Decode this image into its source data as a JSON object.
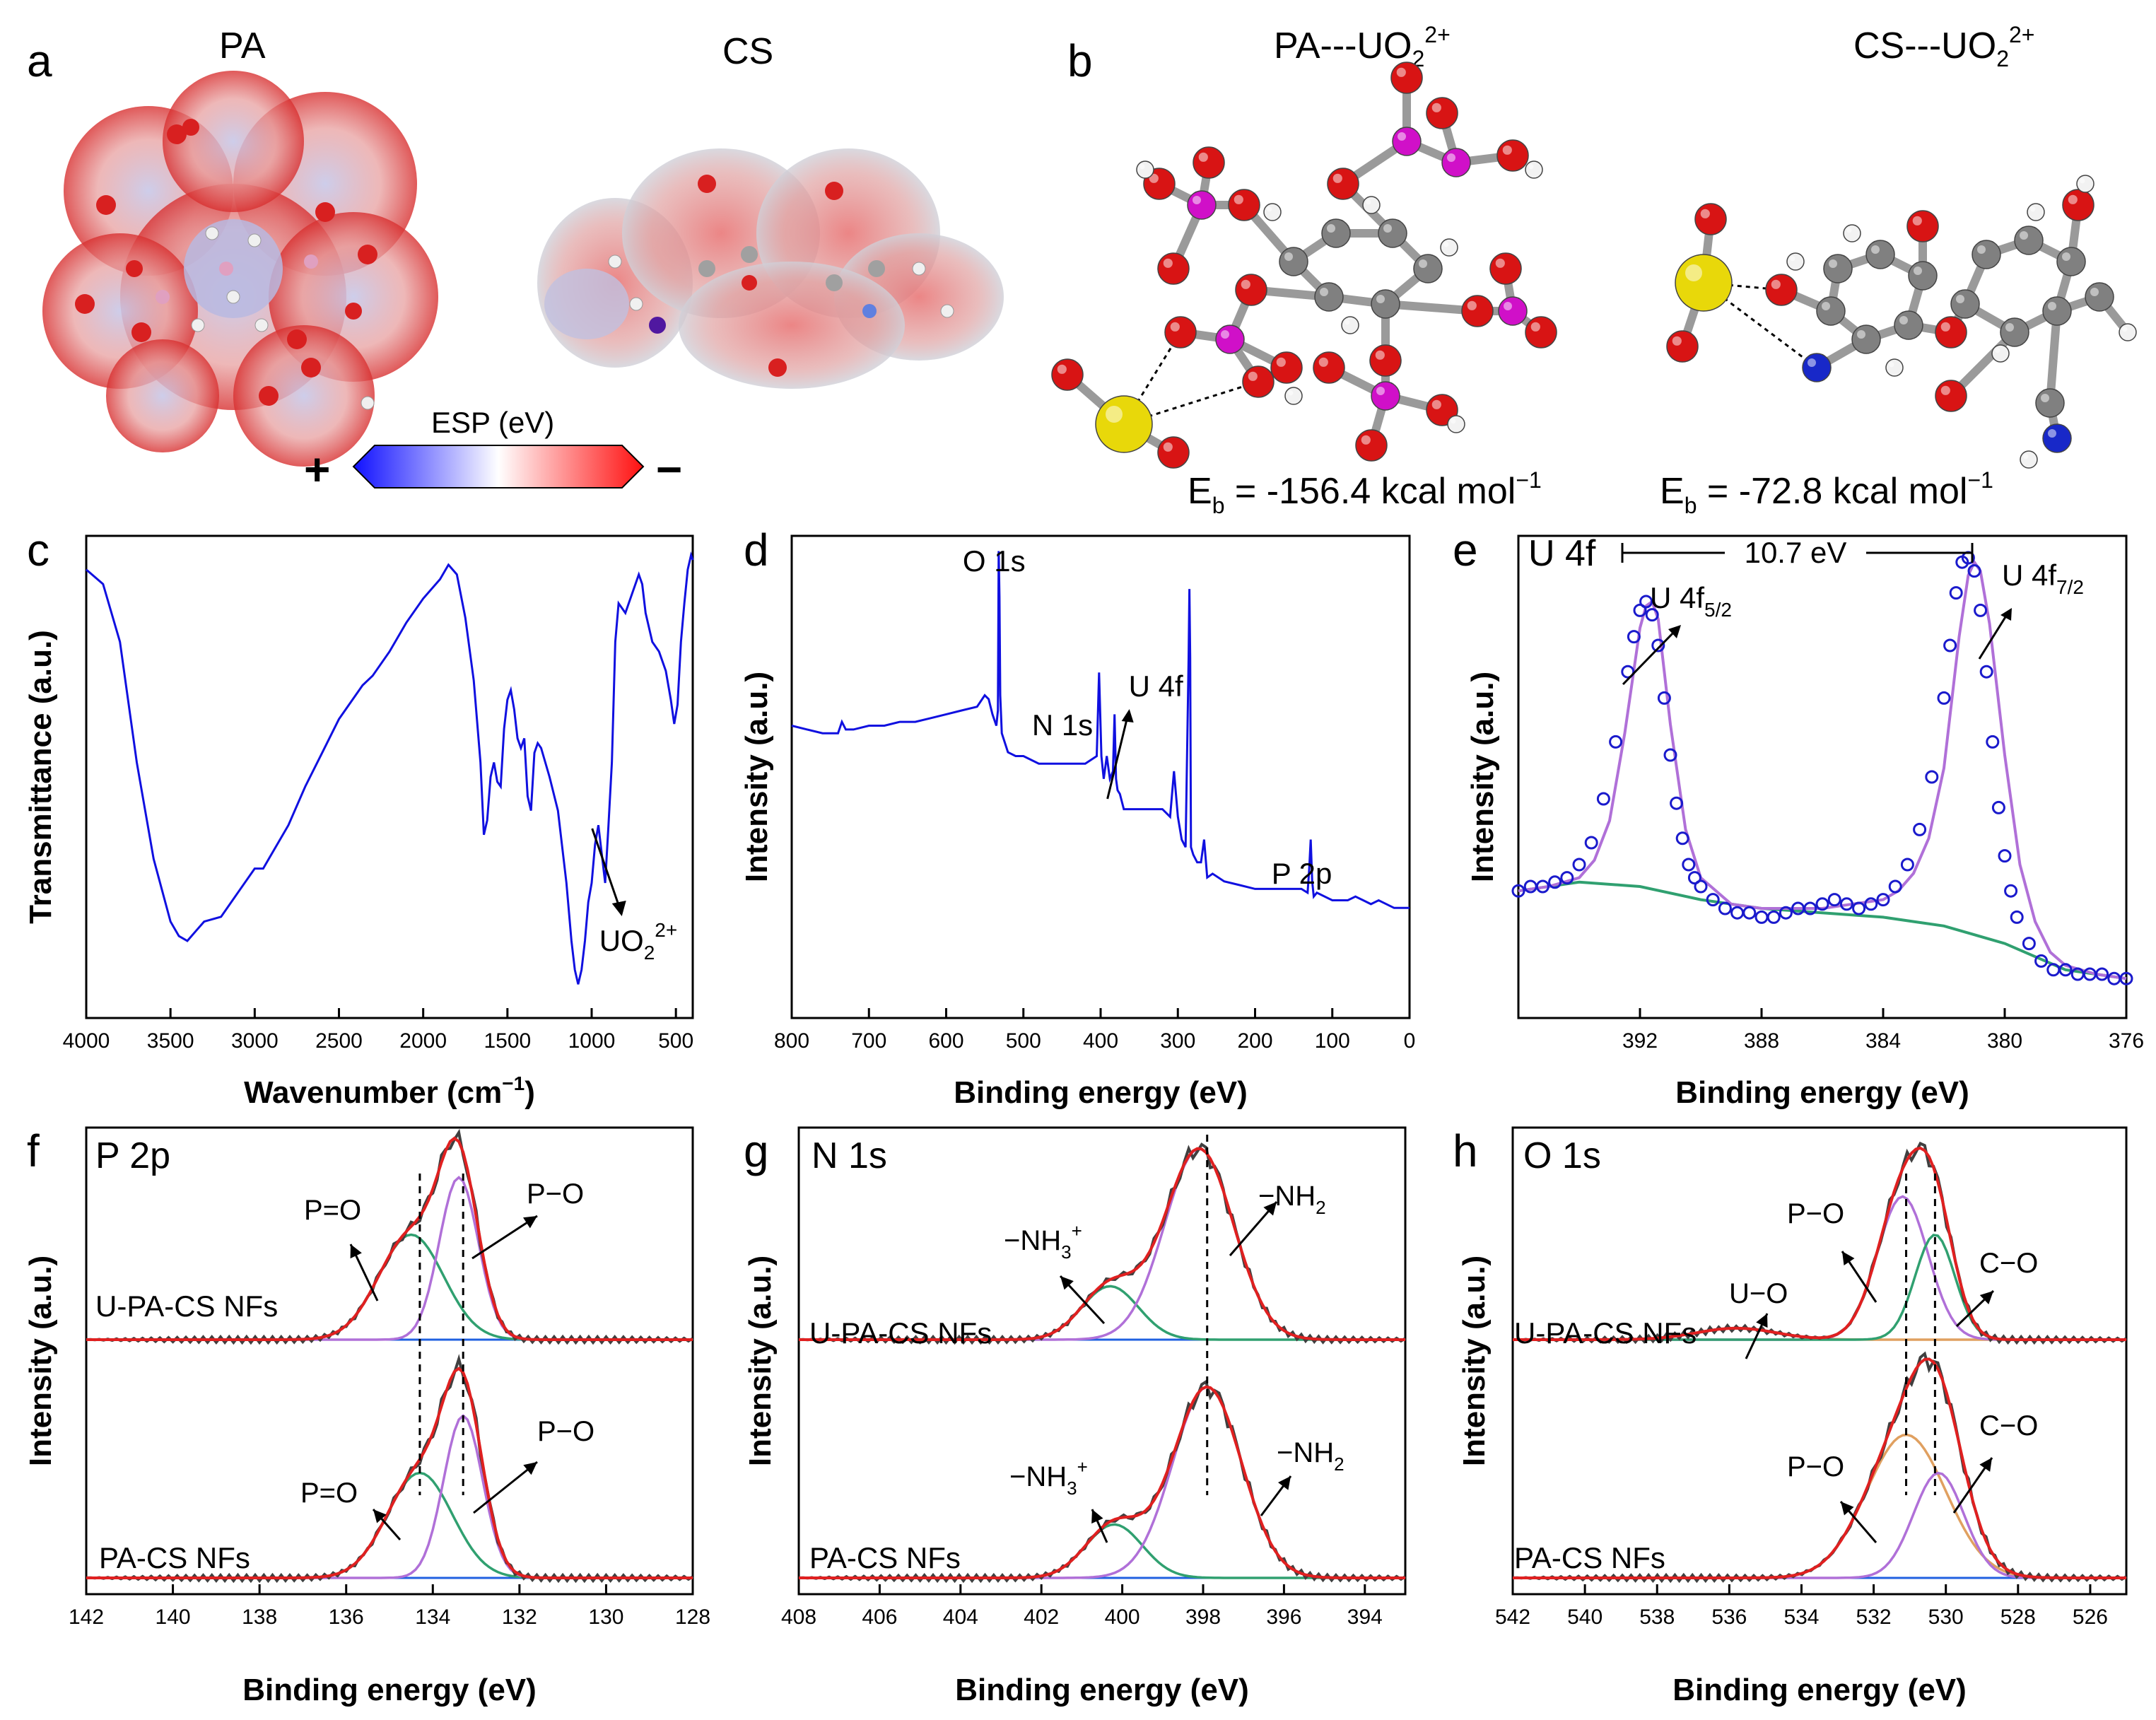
{
  "panel_letters": {
    "a": "a",
    "b": "b",
    "c": "c",
    "d": "d",
    "e": "e",
    "f": "f",
    "g": "g",
    "h": "h"
  },
  "panel_a": {
    "mol1": "PA",
    "mol2": "CS",
    "colorbar_title": "ESP (eV)",
    "plus": "+",
    "minus": "−",
    "colorbar_colors": [
      "#1010ff",
      "#ffffff",
      "#ff1010"
    ]
  },
  "panel_b": {
    "complex1_main": "PA---UO",
    "complex1_sub": "2",
    "complex1_sup": "2+",
    "complex2_main": "CS---UO",
    "complex2_sub": "2",
    "complex2_sup": "2+",
    "eb1_main": "E",
    "eb1_sub": "b",
    "eb1_value": " = -156.4 kcal mol",
    "eb1_exp": "−1",
    "eb2_main": "E",
    "eb2_sub": "b",
    "eb2_value": " = -72.8 kcal mol",
    "eb2_exp": "−1",
    "atom_colors": {
      "uranium": "#e8d80a",
      "oxygen": "#d81414",
      "phosphorus": "#d010c8",
      "carbon": "#808080",
      "nitrogen": "#1828c8",
      "hydrogen": "#f2f2f2"
    }
  },
  "chart_data": [
    {
      "panel": "c",
      "type": "line",
      "xlabel": "Wavenumber (cm",
      "xlabel_exp": "−1",
      "xlabel_close": ")",
      "ylabel": "Transmittance (a.u.)",
      "xlim": [
        4000,
        400
      ],
      "xticks": [
        "4000",
        "3500",
        "3000",
        "2500",
        "2000",
        "1500",
        "1000",
        "500"
      ],
      "color": "#1010e0",
      "series": [
        {
          "x": [
            4000,
            3900,
            3800,
            3700,
            3600,
            3500,
            3450,
            3400,
            3350,
            3300,
            3200,
            3100,
            3000,
            2950,
            2900,
            2800,
            2700,
            2600,
            2500,
            2400,
            2360,
            2300,
            2200,
            2100,
            2000,
            1900,
            1850,
            1800,
            1750,
            1700,
            1660,
            1640,
            1620,
            1600,
            1580,
            1560,
            1540,
            1520,
            1500,
            1480,
            1460,
            1440,
            1420,
            1400,
            1380,
            1360,
            1340,
            1320,
            1300,
            1250,
            1200,
            1150,
            1120,
            1100,
            1080,
            1060,
            1040,
            1020,
            1000,
            980,
            960,
            940,
            920,
            900,
            880,
            860,
            840,
            820,
            800,
            760,
            720,
            700,
            680,
            640,
            600,
            560,
            530,
            510,
            490,
            470,
            450,
            430,
            410,
            400
          ],
          "y": [
            0.95,
            0.92,
            0.8,
            0.55,
            0.35,
            0.22,
            0.19,
            0.18,
            0.2,
            0.22,
            0.23,
            0.28,
            0.33,
            0.33,
            0.36,
            0.42,
            0.5,
            0.57,
            0.64,
            0.69,
            0.71,
            0.73,
            0.78,
            0.84,
            0.89,
            0.93,
            0.96,
            0.94,
            0.85,
            0.72,
            0.55,
            0.4,
            0.43,
            0.52,
            0.55,
            0.51,
            0.5,
            0.62,
            0.68,
            0.7,
            0.66,
            0.6,
            0.58,
            0.6,
            0.48,
            0.45,
            0.57,
            0.59,
            0.58,
            0.52,
            0.45,
            0.3,
            0.18,
            0.12,
            0.09,
            0.12,
            0.18,
            0.26,
            0.3,
            0.38,
            0.42,
            0.36,
            0.3,
            0.42,
            0.55,
            0.8,
            0.88,
            0.87,
            0.86,
            0.9,
            0.94,
            0.92,
            0.86,
            0.8,
            0.78,
            0.74,
            0.68,
            0.63,
            0.67,
            0.8,
            0.88,
            0.95,
            0.98,
            0.97
          ]
        }
      ],
      "annotation": {
        "text_main": "UO",
        "text_sub": "2",
        "text_sup": "2+",
        "x": 955
      }
    },
    {
      "panel": "d",
      "type": "line",
      "xlabel": "Binding energy (eV)",
      "ylabel": "Intensity (a.u.)",
      "xlim": [
        800,
        0
      ],
      "xticks": [
        "800",
        "700",
        "600",
        "500",
        "400",
        "300",
        "200",
        "100",
        "0"
      ],
      "color": "#1010e0",
      "series": [
        {
          "x": [
            800,
            780,
            760,
            740,
            735,
            730,
            720,
            700,
            680,
            660,
            640,
            620,
            600,
            580,
            560,
            550,
            545,
            540,
            535,
            533,
            532,
            531,
            530,
            528,
            520,
            510,
            500,
            480,
            460,
            440,
            420,
            405,
            402,
            399,
            396,
            392,
            388,
            384,
            382,
            380,
            378,
            375,
            370,
            360,
            340,
            320,
            310,
            305,
            300,
            295,
            290,
            286,
            285,
            284,
            283,
            280,
            275,
            270,
            266,
            262,
            255,
            240,
            220,
            200,
            180,
            160,
            140,
            132,
            130,
            128,
            126,
            124,
            120,
            100,
            80,
            70,
            60,
            50,
            40,
            20,
            0
          ],
          "y": [
            0.52,
            0.51,
            0.5,
            0.5,
            0.53,
            0.51,
            0.51,
            0.52,
            0.52,
            0.53,
            0.53,
            0.54,
            0.55,
            0.56,
            0.57,
            0.6,
            0.59,
            0.55,
            0.52,
            0.56,
            0.98,
            0.86,
            0.6,
            0.5,
            0.45,
            0.44,
            0.44,
            0.42,
            0.42,
            0.42,
            0.42,
            0.44,
            0.66,
            0.44,
            0.38,
            0.44,
            0.38,
            0.4,
            0.55,
            0.38,
            0.35,
            0.34,
            0.3,
            0.3,
            0.3,
            0.3,
            0.28,
            0.4,
            0.28,
            0.22,
            0.2,
            0.7,
            0.88,
            0.7,
            0.2,
            0.18,
            0.16,
            0.16,
            0.22,
            0.12,
            0.13,
            0.11,
            0.1,
            0.09,
            0.09,
            0.09,
            0.09,
            0.08,
            0.14,
            0.22,
            0.11,
            0.07,
            0.08,
            0.06,
            0.06,
            0.07,
            0.06,
            0.05,
            0.06,
            0.04,
            0.04
          ]
        }
      ],
      "annotations": [
        {
          "text": "O 1s",
          "x": 531
        },
        {
          "text": "N 1s",
          "x": 402
        },
        {
          "text": "U 4f",
          "x": 382
        },
        {
          "text": "P 2p",
          "x": 133
        }
      ]
    },
    {
      "panel": "e",
      "type": "scatter+line",
      "xlabel": "Binding energy (eV)",
      "ylabel": "Intensity (a.u.)",
      "xlim": [
        396,
        376
      ],
      "xticks": [
        "392",
        "388",
        "384",
        "380",
        "376"
      ],
      "header": "U 4f",
      "span_label": "10.7 eV",
      "peak1_main": "U 4f",
      "peak1_sub": "5/2",
      "peak1_x": 391.7,
      "peak2_main": "U 4f",
      "peak2_sub": "7/2",
      "peak2_x": 381.0,
      "fit_color": "#b070d8",
      "background_color": "#30a070",
      "data_color": "#1a1acc",
      "series": [
        {
          "role": "data",
          "x": [
            396,
            395.6,
            395.2,
            394.8,
            394.4,
            394.0,
            393.6,
            393.2,
            392.8,
            392.4,
            392.2,
            392.0,
            391.8,
            391.6,
            391.4,
            391.2,
            391.0,
            390.8,
            390.6,
            390.4,
            390.2,
            390.0,
            389.6,
            389.2,
            388.8,
            388.4,
            388.0,
            387.6,
            387.2,
            386.8,
            386.4,
            386.0,
            385.6,
            385.2,
            384.8,
            384.4,
            384.0,
            383.6,
            383.2,
            382.8,
            382.4,
            382.0,
            381.8,
            381.6,
            381.4,
            381.2,
            381.0,
            380.8,
            380.6,
            380.4,
            380.2,
            380.0,
            379.8,
            379.6,
            379.2,
            378.8,
            378.4,
            378.0,
            377.6,
            377.2,
            376.8,
            376.4,
            376.0
          ],
          "y": [
            0.24,
            0.25,
            0.25,
            0.26,
            0.27,
            0.3,
            0.35,
            0.45,
            0.58,
            0.74,
            0.82,
            0.88,
            0.9,
            0.87,
            0.8,
            0.68,
            0.55,
            0.44,
            0.36,
            0.3,
            0.27,
            0.25,
            0.22,
            0.2,
            0.19,
            0.19,
            0.18,
            0.18,
            0.19,
            0.2,
            0.2,
            0.21,
            0.22,
            0.21,
            0.2,
            0.21,
            0.22,
            0.25,
            0.3,
            0.38,
            0.5,
            0.68,
            0.8,
            0.92,
            0.99,
            1.0,
            0.97,
            0.88,
            0.74,
            0.58,
            0.43,
            0.32,
            0.24,
            0.18,
            0.12,
            0.08,
            0.06,
            0.06,
            0.05,
            0.05,
            0.05,
            0.04,
            0.04
          ]
        },
        {
          "role": "fit",
          "x": [
            396,
            395,
            394,
            393.5,
            393,
            392.5,
            392,
            391.8,
            391.6,
            391.4,
            391,
            390.5,
            390,
            389,
            388,
            387,
            386,
            385,
            384,
            383.5,
            383,
            382.5,
            382,
            381.5,
            381.2,
            381,
            380.8,
            380.5,
            380,
            379.5,
            379,
            378.5,
            378,
            377,
            376
          ],
          "y": [
            0.24,
            0.25,
            0.27,
            0.31,
            0.4,
            0.6,
            0.84,
            0.89,
            0.9,
            0.86,
            0.62,
            0.38,
            0.27,
            0.21,
            0.2,
            0.2,
            0.2,
            0.21,
            0.22,
            0.24,
            0.28,
            0.36,
            0.52,
            0.82,
            0.96,
            0.99,
            0.97,
            0.85,
            0.55,
            0.3,
            0.17,
            0.1,
            0.07,
            0.05,
            0.04
          ]
        },
        {
          "role": "background",
          "x": [
            396,
            394,
            392,
            390,
            388,
            386,
            384,
            383,
            382,
            381,
            380,
            379,
            378,
            377,
            376
          ],
          "y": [
            0.24,
            0.26,
            0.25,
            0.22,
            0.2,
            0.19,
            0.18,
            0.17,
            0.16,
            0.14,
            0.12,
            0.09,
            0.06,
            0.05,
            0.04
          ]
        }
      ]
    },
    {
      "panel": "f",
      "type": "line",
      "xlabel": "Binding energy (eV)",
      "ylabel": "Intensity (a.u.)",
      "xlim": [
        142,
        128
      ],
      "xticks": [
        "142",
        "140",
        "138",
        "136",
        "134",
        "132",
        "130",
        "128"
      ],
      "header": "P 2p",
      "top_label": "U-PA-CS NFs",
      "bottom_label": "PA-CS NFs",
      "top_peaks": [
        {
          "label": "P=O",
          "center": 134.5,
          "height": 0.55
        },
        {
          "label": "P−O",
          "center": 133.4,
          "height": 0.85
        }
      ],
      "bottom_peaks": [
        {
          "label": "P=O",
          "center": 134.3,
          "height": 0.55
        },
        {
          "label": "P−O",
          "center": 133.3,
          "height": 0.85
        }
      ],
      "dashed_x": [
        134.3,
        133.3
      ],
      "colors": {
        "raw": "#404040",
        "envelope": "#e02020",
        "p_eq_o": "#30a070",
        "p_o": "#b070d8",
        "baseline": "#2060e0"
      }
    },
    {
      "panel": "g",
      "type": "line",
      "xlabel": "Binding energy (eV)",
      "ylabel": "Intensity (a.u.)",
      "xlim": [
        408,
        393
      ],
      "xticks": [
        "408",
        "406",
        "404",
        "402",
        "400",
        "398",
        "396",
        "394"
      ],
      "header": "N 1s",
      "top_label": "U-PA-CS NFs",
      "bottom_label": "PA-CS NFs",
      "top_peaks": [
        {
          "label_main": "−NH",
          "label_sub": "3",
          "label_sup": "+",
          "center": 400.3,
          "height": 0.28
        },
        {
          "label_main": "−NH",
          "label_sub": "2",
          "label_sup": "",
          "center": 398.1,
          "height": 1.0
        }
      ],
      "bottom_peaks": [
        {
          "label_main": "−NH",
          "label_sub": "3",
          "label_sup": "+",
          "center": 400.2,
          "height": 0.28
        },
        {
          "label_main": "−NH",
          "label_sub": "2",
          "label_sup": "",
          "center": 397.9,
          "height": 1.0
        }
      ],
      "dashed_x": [
        397.9
      ],
      "colors": {
        "raw": "#404040",
        "envelope": "#e02020",
        "nh3": "#30a070",
        "nh2": "#b070d8",
        "baseline": "#2060e0"
      }
    },
    {
      "panel": "h",
      "type": "line",
      "xlabel": "Binding energy (eV)",
      "ylabel": "Intensity (a.u.)",
      "xlim": [
        542,
        525
      ],
      "xticks": [
        "542",
        "540",
        "538",
        "536",
        "534",
        "532",
        "530",
        "528",
        "526"
      ],
      "header": "O 1s",
      "top_label": "U-PA-CS NFs",
      "bottom_label": "PA-CS NFs",
      "top_peaks": [
        {
          "label": "U−O",
          "center": 535.8,
          "height": 0.06
        },
        {
          "label": "P−O",
          "center": 531.2,
          "height": 0.75
        },
        {
          "label": "C−O",
          "center": 530.3,
          "height": 0.55
        }
      ],
      "bottom_peaks": [
        {
          "label": "P−O",
          "center": 531.1,
          "height": 0.75
        },
        {
          "label": "C−O",
          "center": 530.2,
          "height": 0.55
        }
      ],
      "dashed_x": [
        531.1,
        530.3
      ],
      "colors": {
        "raw": "#404040",
        "envelope": "#e02020",
        "u_o": "#e0a060",
        "p_o": "#b070d8",
        "c_o": "#30a070",
        "baseline": "#2060e0"
      }
    }
  ]
}
